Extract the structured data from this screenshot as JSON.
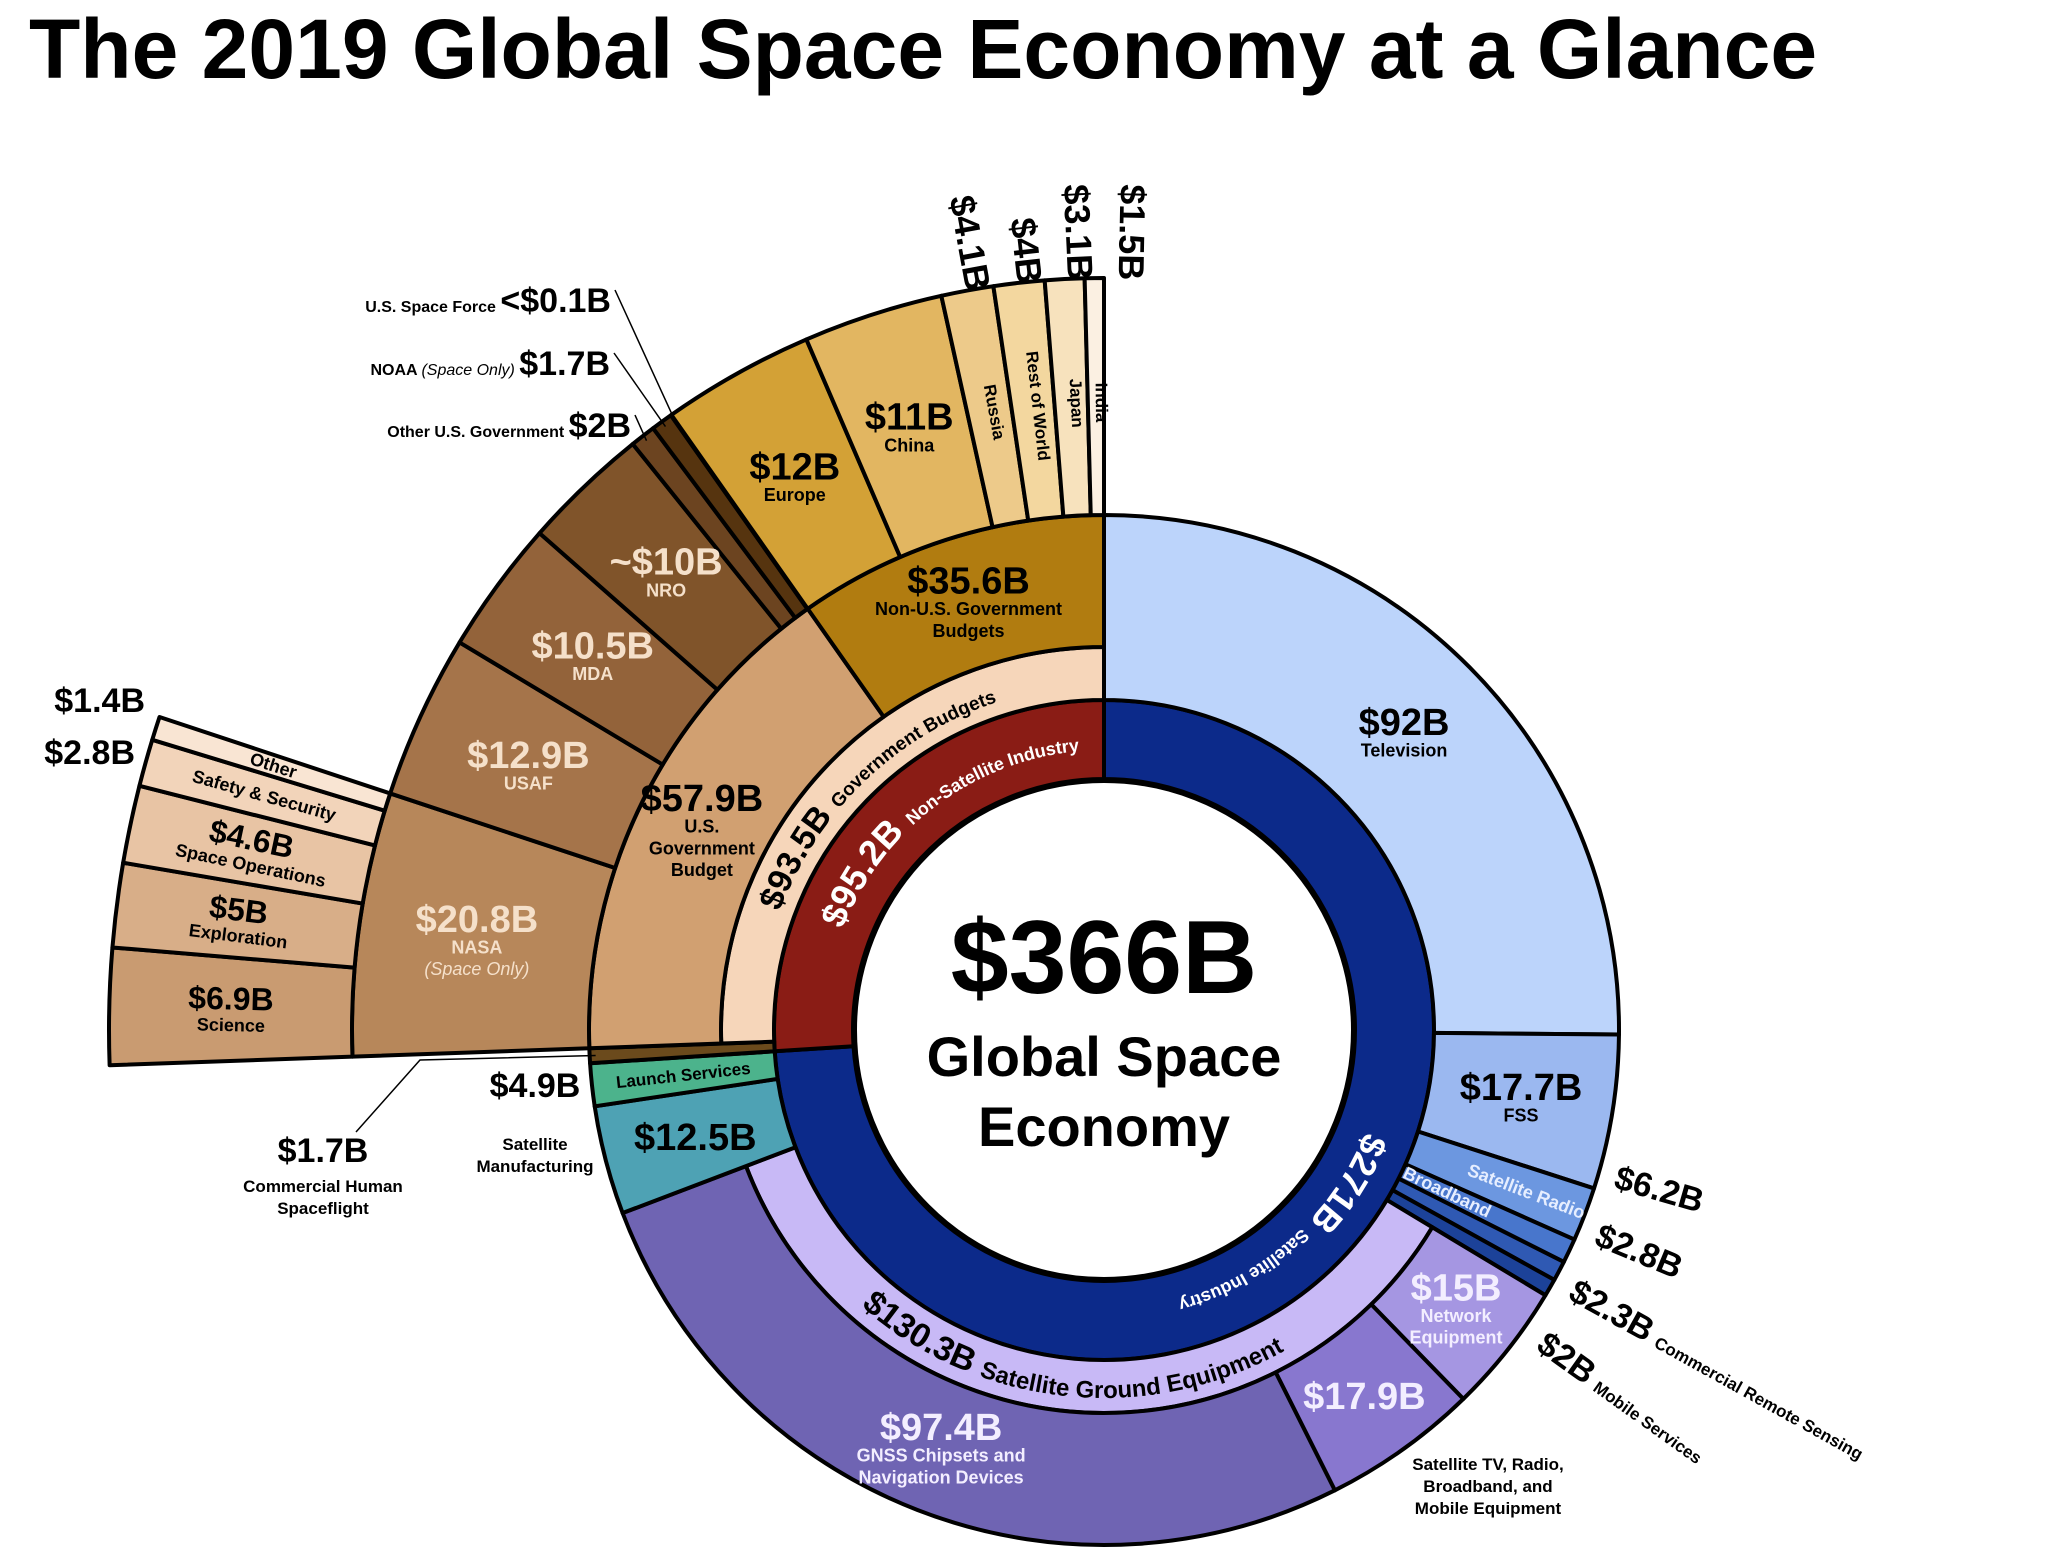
{
  "chart_data": {
    "type": "sunburst",
    "title": "The 2019 Global Space Economy at a Glance",
    "unit": "USD billions",
    "center": {
      "value_label": "$366B",
      "line1": "Global Space",
      "line2": "Economy"
    },
    "total": 366,
    "nodes": [
      {
        "id": "sat_industry",
        "name": [
          "Satellite Industry"
        ],
        "value": 271,
        "value_label": "$271B",
        "color": "#0c2a8a",
        "text_color": "#ffffff",
        "children": [
          {
            "id": "tv",
            "name": [
              "Television"
            ],
            "value": 92,
            "value_label": "$92B",
            "color": "#bcd4fb",
            "text_color": "#000000"
          },
          {
            "id": "fss",
            "name": [
              "FSS"
            ],
            "value": 17.7,
            "value_label": "$17.7B",
            "color": "#9bb8f0",
            "text_color": "#000000"
          },
          {
            "id": "sat_radio",
            "name": [
              "Satellite Radio"
            ],
            "value": 6.2,
            "value_label": "$6.2B",
            "color": "#6c97e0",
            "text_color": "#e6eeff"
          },
          {
            "id": "broadband",
            "name": [
              "Broadband"
            ],
            "value": 2.8,
            "value_label": "$2.8B",
            "color": "#4876cc",
            "text_color": "#e6eeff"
          },
          {
            "id": "remote",
            "name": [
              "Commercial Remote Sensing"
            ],
            "value": 2.3,
            "value_label": "$2.3B",
            "color": "#2f59b3",
            "text_color": "#000000"
          },
          {
            "id": "mobile",
            "name": [
              "Mobile Services"
            ],
            "value": 2,
            "value_label": "$2B",
            "color": "#1c4299",
            "text_color": "#000000"
          },
          {
            "id": "ground",
            "name": [
              "Satellite Ground Equipment"
            ],
            "value": 130.3,
            "value_label": "$130.3B",
            "color": "#c8b9f6",
            "text_color": "#000000",
            "children": [
              {
                "id": "network",
                "name": [
                  "Network",
                  "Equipment"
                ],
                "value": 15,
                "value_label": "$15B",
                "color": "#a596e2",
                "text_color": "#f3eeff"
              },
              {
                "id": "sattv",
                "name": [
                  "Satellite TV, Radio,",
                  "Broadband, and",
                  "Mobile Equipment"
                ],
                "value": 17.9,
                "value_label": "$17.9B",
                "color": "#8877cf",
                "text_color": "#f3eeff"
              },
              {
                "id": "gnss",
                "name": [
                  "GNSS Chipsets and",
                  "Navigation Devices"
                ],
                "value": 97.4,
                "value_label": "$97.4B",
                "color": "#6f64b3",
                "text_color": "#f3eeff"
              }
            ]
          },
          {
            "id": "manufacturing",
            "name": [
              "Satellite",
              "Manufacturing"
            ],
            "value": 12.5,
            "value_label": "$12.5B",
            "color": "#4ea2b4",
            "text_color": "#000000"
          },
          {
            "id": "launch",
            "name": [
              "Launch Services"
            ],
            "value": 4.9,
            "value_label": "$4.9B",
            "color": "#4cb38c",
            "text_color": "#000000"
          }
        ]
      },
      {
        "id": "non_sat",
        "name": [
          "Non-Satellite Industry"
        ],
        "value": 95.2,
        "value_label": "$95.2B",
        "color": "#8a1c15",
        "text_color": "#ffffff",
        "children": [
          {
            "id": "human",
            "name": [
              "Commercial Human",
              "Spaceflight"
            ],
            "value": 1.7,
            "value_label": "$1.7B",
            "color": "#6b4a1c",
            "text_color": "#000000"
          },
          {
            "id": "gov",
            "name": [
              "Government Budgets"
            ],
            "value": 93.5,
            "value_label": "$93.5B",
            "color": "#f6d6ba",
            "text_color": "#000000",
            "children": [
              {
                "id": "us",
                "name": [
                  "U.S.",
                  "Government",
                  "Budget"
                ],
                "value": 57.9,
                "value_label": "$57.9B",
                "color": "#d1a071",
                "text_color": "#000000",
                "children": [
                  {
                    "id": "nasa",
                    "name": [
                      "NASA"
                    ],
                    "qualifier": "(Space Only)",
                    "value": 20.8,
                    "value_label": "$20.8B",
                    "color": "#b7875a",
                    "text_color": "#f5e0ca",
                    "children": [
                      {
                        "id": "science",
                        "name": [
                          "Science"
                        ],
                        "value": 6.9,
                        "value_label": "$6.9B",
                        "color": "#c99b71",
                        "text_color": "#000000"
                      },
                      {
                        "id": "exploration",
                        "name": [
                          "Exploration"
                        ],
                        "value": 5,
                        "value_label": "$5B",
                        "color": "#d8ae88",
                        "text_color": "#000000"
                      },
                      {
                        "id": "space_ops",
                        "name": [
                          "Space Operations"
                        ],
                        "value": 4.6,
                        "value_label": "$4.6B",
                        "color": "#e8c4a4",
                        "text_color": "#000000"
                      },
                      {
                        "id": "safety",
                        "name": [
                          "Safety & Security"
                        ],
                        "value": 2.8,
                        "value_label": "$2.8B",
                        "color": "#f2d4ba",
                        "text_color": "#000000"
                      },
                      {
                        "id": "nasa_other",
                        "name": [
                          "Other"
                        ],
                        "value": 1.4,
                        "value_label": "$1.4B",
                        "color": "#f9e5d3",
                        "text_color": "#000000"
                      }
                    ]
                  },
                  {
                    "id": "usaf",
                    "name": [
                      "USAF"
                    ],
                    "value": 12.9,
                    "value_label": "$12.9B",
                    "color": "#a5744a",
                    "text_color": "#f5e0ca"
                  },
                  {
                    "id": "mda",
                    "name": [
                      "MDA"
                    ],
                    "value": 10.5,
                    "value_label": "$10.5B",
                    "color": "#93633a",
                    "text_color": "#f5e0ca"
                  },
                  {
                    "id": "nro",
                    "name": [
                      "NRO"
                    ],
                    "value": 10,
                    "value_label": "~$10B",
                    "color": "#80542a",
                    "text_color": "#f5e0ca"
                  },
                  {
                    "id": "other_us",
                    "name": [
                      "Other U.S. Government"
                    ],
                    "value": 2,
                    "value_label": "$2B",
                    "color": "#6c4420",
                    "text_color": "#000000"
                  },
                  {
                    "id": "noaa",
                    "name": [
                      "NOAA"
                    ],
                    "qualifier": "(Space Only)",
                    "value": 1.7,
                    "value_label": "$1.7B",
                    "color": "#56340f",
                    "text_color": "#000000"
                  },
                  {
                    "id": "space_force",
                    "name": [
                      "U.S. Space Force"
                    ],
                    "value": 0.05,
                    "value_label": "<$0.1B",
                    "color": "#3a2207",
                    "text_color": "#000000"
                  }
                ]
              },
              {
                "id": "nonus",
                "name": [
                  "Non-U.S. Government",
                  "Budgets"
                ],
                "value": 35.6,
                "value_label": "$35.6B",
                "color": "#b17c10",
                "text_color": "#000000",
                "children": [
                  {
                    "id": "europe",
                    "name": [
                      "Europe"
                    ],
                    "value": 12,
                    "value_label": "$12B",
                    "color": "#d3a136",
                    "text_color": "#000000"
                  },
                  {
                    "id": "china",
                    "name": [
                      "China"
                    ],
                    "value": 11,
                    "value_label": "$11B",
                    "color": "#e2b661",
                    "text_color": "#000000"
                  },
                  {
                    "id": "russia",
                    "name": [
                      "Russia"
                    ],
                    "value": 4.1,
                    "value_label": "$4.1B",
                    "color": "#edca8a",
                    "text_color": "#000000"
                  },
                  {
                    "id": "row",
                    "name": [
                      "Rest of World"
                    ],
                    "value": 4,
                    "value_label": "$4B",
                    "color": "#f3d79f",
                    "text_color": "#000000"
                  },
                  {
                    "id": "japan",
                    "name": [
                      "Japan"
                    ],
                    "value": 3.1,
                    "value_label": "$3.1B",
                    "color": "#f7e2bd",
                    "text_color": "#000000"
                  },
                  {
                    "id": "india",
                    "name": [
                      "India"
                    ],
                    "value": 1.5,
                    "value_label": "$1.5B",
                    "color": "#fbf0e2",
                    "text_color": "#000000"
                  }
                ]
              }
            ]
          }
        ]
      }
    ]
  }
}
